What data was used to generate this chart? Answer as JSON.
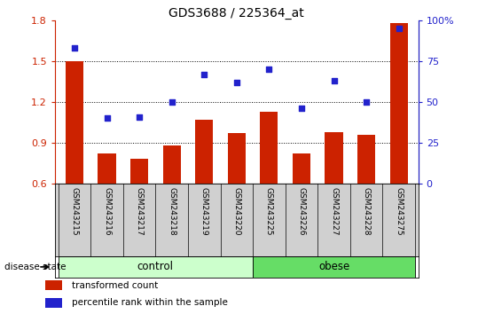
{
  "title": "GDS3688 / 225364_at",
  "samples": [
    "GSM243215",
    "GSM243216",
    "GSM243217",
    "GSM243218",
    "GSM243219",
    "GSM243220",
    "GSM243225",
    "GSM243226",
    "GSM243227",
    "GSM243228",
    "GSM243275"
  ],
  "bar_values": [
    1.5,
    0.82,
    0.78,
    0.88,
    1.07,
    0.97,
    1.13,
    0.82,
    0.98,
    0.96,
    1.78
  ],
  "dot_values": [
    83,
    40,
    41,
    50,
    67,
    62,
    70,
    46,
    63,
    50,
    95
  ],
  "bar_color": "#cc2200",
  "dot_color": "#2222cc",
  "ylim_left": [
    0.6,
    1.8
  ],
  "ylim_right": [
    0,
    100
  ],
  "yticks_left": [
    0.6,
    0.9,
    1.2,
    1.5,
    1.8
  ],
  "yticks_right": [
    0,
    25,
    50,
    75,
    100
  ],
  "ytick_labels_right": [
    "0",
    "25",
    "50",
    "75",
    "100%"
  ],
  "hlines": [
    0.9,
    1.2,
    1.5
  ],
  "n_control": 6,
  "control_label": "control",
  "obese_label": "obese",
  "disease_state_label": "disease state",
  "legend_bar_label": "transformed count",
  "legend_dot_label": "percentile rank within the sample",
  "control_color": "#ccffcc",
  "obese_color": "#66dd66",
  "tick_label_color_left": "#cc2200",
  "tick_label_color_right": "#2222cc",
  "gray_band_color": "#d0d0d0",
  "bar_width": 0.55
}
